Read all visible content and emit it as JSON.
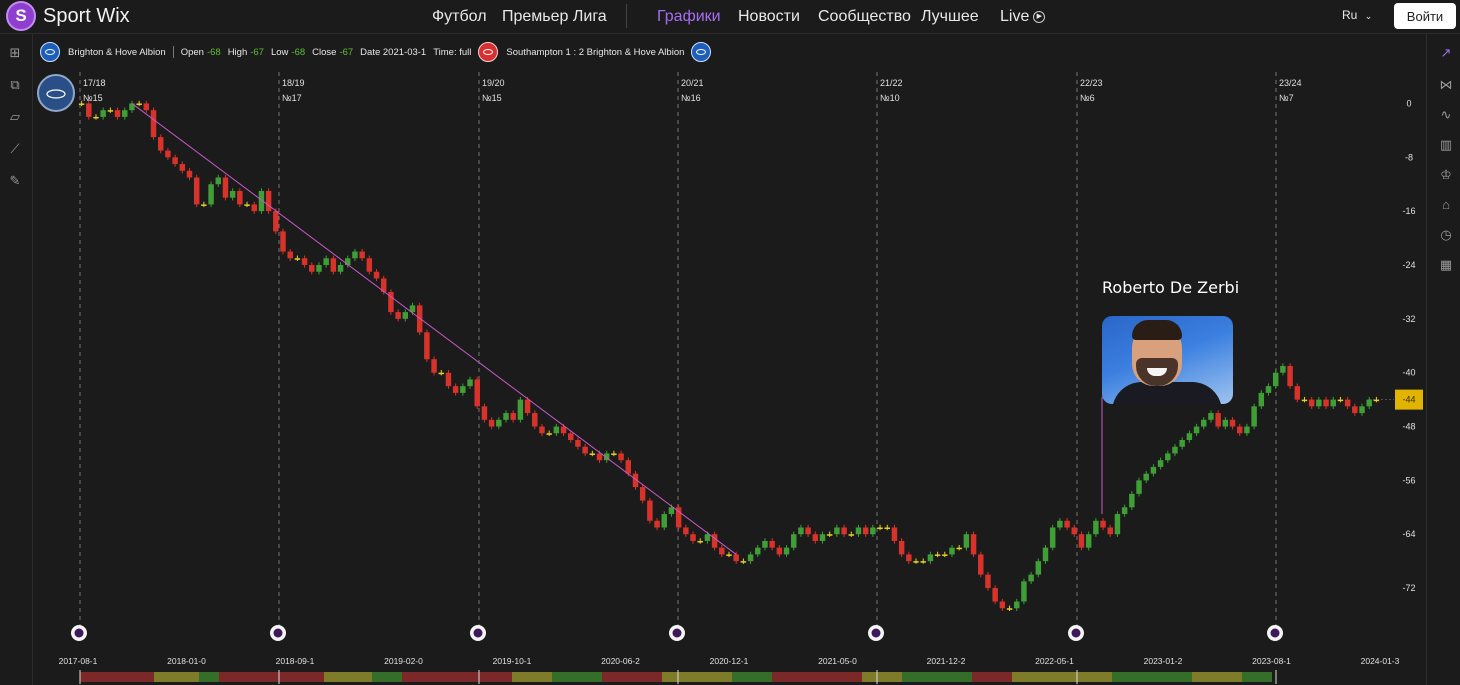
{
  "app": {
    "name": "Sport Wix",
    "logo_letter": "S"
  },
  "nav": [
    {
      "label": "Футбол",
      "active": false
    },
    {
      "label": "Премьер Лига",
      "active": false
    },
    {
      "label": "Графики",
      "active": true
    },
    {
      "label": "Новости",
      "active": false
    },
    {
      "label": "Сообщество",
      "active": false
    },
    {
      "label": "Лучшее",
      "active": false
    },
    {
      "label": "Live",
      "active": false
    }
  ],
  "language": "Ru",
  "login_label": "Войти",
  "info": {
    "team": "Brighton & Hove Albion",
    "open_label": "Open",
    "open": "-68",
    "high_label": "High",
    "high": "-67",
    "low_label": "Low",
    "low": "-68",
    "close_label": "Close",
    "close": "-67",
    "date_label": "Date",
    "date": "2021-03-1",
    "time_label": "Time:",
    "time": "full",
    "match": "Southampton 1 : 2 Brighton & Hove Albion"
  },
  "colors": {
    "up": "#3f9e35",
    "down": "#d8332b",
    "doji": "#e6d12a",
    "accent": "#a66ef0",
    "trend": "#c759c9",
    "price_tag": "#e0b400"
  },
  "annotation": {
    "name": "Roberto De Zerbi",
    "date": "2022-09"
  },
  "icons": {
    "left": [
      "add-chart-icon",
      "line-chart-icon",
      "ruler-icon",
      "trendline-icon",
      "pencil-icon"
    ],
    "right": [
      "share-icon",
      "indicator-icon",
      "trend-icon",
      "compare-icon",
      "trophy-icon",
      "home-icon",
      "stopwatch-icon",
      "calendar-icon"
    ]
  },
  "chart_data": {
    "type": "candlestick",
    "y_axis": {
      "ticks": [
        "0",
        "-8",
        "-16",
        "-24",
        "-32",
        "-40",
        "-48",
        "-56",
        "-64",
        "-72"
      ],
      "min": -76,
      "max": 2
    },
    "current_value": "-44",
    "x_axis_labels": [
      "2017-08-1",
      "2018-01-0",
      "2018-09-1",
      "2019-02-0",
      "2019-10-1",
      "2020-06-2",
      "2020-12-1",
      "2021-05-0",
      "2021-12-2",
      "2022-05-1",
      "2023-01-2",
      "2023-08-1",
      "2024-01-3"
    ],
    "seasons": [
      {
        "label": "17/18",
        "rank": "№15"
      },
      {
        "label": "18/19",
        "rank": "№17"
      },
      {
        "label": "19/20",
        "rank": "№15"
      },
      {
        "label": "20/21",
        "rank": "№16"
      },
      {
        "label": "21/22",
        "rank": "№10"
      },
      {
        "label": "22/23",
        "rank": "№6"
      },
      {
        "label": "23/24",
        "rank": "№7"
      }
    ],
    "closes": [
      0,
      -2,
      -2,
      -1,
      -1,
      -2,
      -1,
      0,
      0,
      -1,
      -5,
      -7,
      -8,
      -9,
      -10,
      -11,
      -15,
      -15,
      -12,
      -11,
      -14,
      -13,
      -15,
      -15,
      -16,
      -13,
      -16,
      -19,
      -22,
      -23,
      -23,
      -24,
      -25,
      -24,
      -23,
      -25,
      -24,
      -23,
      -22,
      -23,
      -25,
      -26,
      -28,
      -31,
      -32,
      -31,
      -30,
      -34,
      -38,
      -40,
      -40,
      -42,
      -43,
      -42,
      -41,
      -45,
      -47,
      -48,
      -47,
      -46,
      -47,
      -44,
      -46,
      -48,
      -49,
      -49,
      -48,
      -49,
      -50,
      -51,
      -52,
      -52,
      -53,
      -52,
      -52,
      -53,
      -55,
      -57,
      -59,
      -62,
      -63,
      -61,
      -60,
      -63,
      -64,
      -65,
      -65,
      -64,
      -66,
      -67,
      -67,
      -68,
      -68,
      -67,
      -66,
      -65,
      -66,
      -67,
      -66,
      -64,
      -63,
      -64,
      -65,
      -64,
      -64,
      -63,
      -64,
      -64,
      -63,
      -64,
      -63,
      -63,
      -63,
      -65,
      -67,
      -68,
      -68,
      -68,
      -67,
      -67,
      -67,
      -66,
      -66,
      -64,
      -67,
      -70,
      -72,
      -74,
      -75,
      -75,
      -74,
      -71,
      -70,
      -68,
      -66,
      -63,
      -62,
      -63,
      -64,
      -66,
      -64,
      -62,
      -63,
      -64,
      -61,
      -60,
      -58,
      -56,
      -55,
      -54,
      -53,
      -52,
      -51,
      -50,
      -49,
      -48,
      -47,
      -46,
      -48,
      -47,
      -48,
      -49,
      -48,
      -45,
      -43,
      -42,
      -40,
      -39,
      -42,
      -44,
      -44,
      -45,
      -44,
      -45,
      -44,
      -44,
      -45,
      -46,
      -45,
      -44,
      -44
    ],
    "trendline": {
      "from": {
        "date": "2017-11",
        "value": 0
      },
      "to": {
        "date": "2021-03",
        "value": -67
      }
    }
  }
}
